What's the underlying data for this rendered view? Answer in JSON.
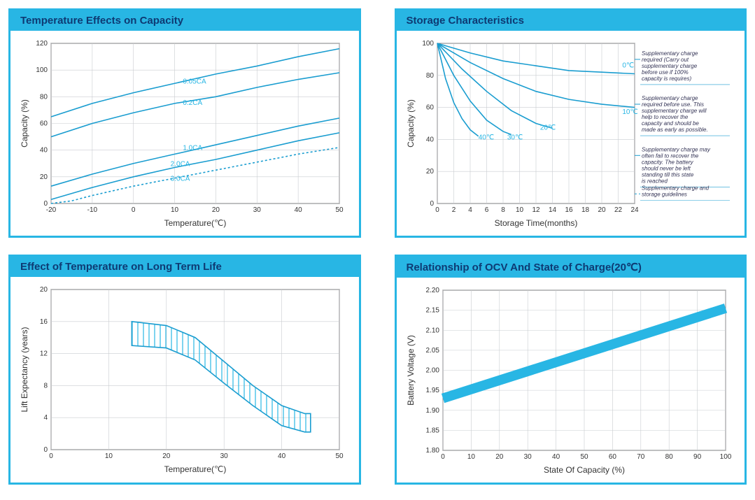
{
  "accent_color": "#28b6e4",
  "line_color": "#1a9dd0",
  "title_color": "#0e3a73",
  "grid_color": "#9aa0a6",
  "grid_light": "#c9ccd0",
  "text_color": "#333333",
  "chart1": {
    "title": "Temperature Effects on Capacity",
    "type": "line",
    "xlabel": "Temperature(℃)",
    "ylabel": "Capacity  (%)",
    "xlim": [
      -20,
      50
    ],
    "ylim": [
      0,
      120
    ],
    "xtick_step": 10,
    "ytick_step": 20,
    "series": [
      {
        "label": "0.05CA",
        "dash": "",
        "data": [
          [
            -20,
            65
          ],
          [
            -10,
            75
          ],
          [
            0,
            83
          ],
          [
            10,
            90
          ],
          [
            20,
            97
          ],
          [
            30,
            103
          ],
          [
            40,
            110
          ],
          [
            50,
            116
          ]
        ]
      },
      {
        "label": "0.2CA",
        "dash": "",
        "data": [
          [
            -20,
            50
          ],
          [
            -10,
            60
          ],
          [
            0,
            68
          ],
          [
            10,
            75
          ],
          [
            20,
            80
          ],
          [
            30,
            87
          ],
          [
            40,
            93
          ],
          [
            50,
            98
          ]
        ]
      },
      {
        "label": "1.0CA",
        "dash": "",
        "data": [
          [
            -20,
            13
          ],
          [
            -10,
            22
          ],
          [
            0,
            30
          ],
          [
            10,
            37
          ],
          [
            20,
            44
          ],
          [
            30,
            51
          ],
          [
            40,
            58
          ],
          [
            50,
            64
          ]
        ]
      },
      {
        "label": "2.0CA",
        "dash": "",
        "data": [
          [
            -20,
            3
          ],
          [
            -10,
            12
          ],
          [
            0,
            20
          ],
          [
            10,
            27
          ],
          [
            20,
            33
          ],
          [
            30,
            40
          ],
          [
            40,
            47
          ],
          [
            50,
            53
          ]
        ]
      },
      {
        "label": "3.0CA",
        "dash": "3,3",
        "data": [
          [
            -20,
            0
          ],
          [
            -15,
            2
          ],
          [
            -10,
            6
          ],
          [
            0,
            13
          ],
          [
            10,
            19
          ],
          [
            20,
            25
          ],
          [
            30,
            31
          ],
          [
            40,
            37
          ],
          [
            50,
            42
          ]
        ]
      }
    ],
    "label_positions": {
      "0.05CA": [
        12,
        90
      ],
      "0.2CA": [
        12,
        74
      ],
      "1.0CA": [
        12,
        40
      ],
      "2.0CA": [
        9,
        28
      ],
      "3.0CA": [
        9,
        17
      ]
    }
  },
  "chart2": {
    "title": "Storage Characteristics",
    "type": "line",
    "xlabel": "Storage  Time(months)",
    "ylabel": "Capacity  (%)",
    "xlim": [
      0,
      24
    ],
    "ylim": [
      0,
      100
    ],
    "xtick_step": 2,
    "ytick_step": 20,
    "series": [
      {
        "label": "0℃",
        "data": [
          [
            0,
            100
          ],
          [
            4,
            94
          ],
          [
            8,
            89
          ],
          [
            12,
            86
          ],
          [
            16,
            83
          ],
          [
            20,
            82
          ],
          [
            24,
            81
          ]
        ]
      },
      {
        "label": "10℃",
        "data": [
          [
            0,
            100
          ],
          [
            4,
            88
          ],
          [
            8,
            78
          ],
          [
            12,
            70
          ],
          [
            16,
            65
          ],
          [
            20,
            62
          ],
          [
            24,
            60
          ]
        ]
      },
      {
        "label": "20℃",
        "data": [
          [
            0,
            100
          ],
          [
            3,
            84
          ],
          [
            6,
            70
          ],
          [
            9,
            58
          ],
          [
            12,
            50
          ],
          [
            14,
            47
          ]
        ]
      },
      {
        "label": "30℃",
        "data": [
          [
            0,
            100
          ],
          [
            2,
            80
          ],
          [
            4,
            64
          ],
          [
            6,
            52
          ],
          [
            8,
            45
          ],
          [
            9,
            43
          ]
        ]
      },
      {
        "label": "40℃",
        "data": [
          [
            0,
            100
          ],
          [
            1,
            78
          ],
          [
            2,
            63
          ],
          [
            3,
            53
          ],
          [
            4,
            46
          ],
          [
            5,
            42
          ]
        ]
      }
    ],
    "label_positions": {
      "0℃": [
        22.5,
        85
      ],
      "10℃": [
        22.5,
        56
      ],
      "20℃": [
        12.5,
        46
      ],
      "30℃": [
        8.5,
        40
      ],
      "40℃": [
        5,
        40
      ]
    },
    "notes": [
      {
        "y": 90,
        "text": "Supplementary charge required (Carry out supplementary charge before use if 100% capacity is requires)"
      },
      {
        "y": 62,
        "text": "Supplementary charge required before use. This supplementary charge will help to recover the capacity and should be made as early as possible."
      },
      {
        "y": 30,
        "text": "Supplementary charge may often fail to recover the capacity. The battery should never be left standing till this state is reached"
      },
      {
        "y": 6,
        "text": "Supplementary charge and storage guidelines"
      }
    ]
  },
  "chart3": {
    "title": "Effect of Temperature on Long Term Life",
    "type": "band",
    "xlabel": "Temperature(℃)",
    "ylabel": "Lift  Expectancy  (years)",
    "xlim": [
      0,
      50
    ],
    "ylim": [
      0,
      20
    ],
    "xtick_step": 10,
    "ytick_step": 4,
    "band": {
      "upper": [
        [
          14,
          16
        ],
        [
          20,
          15.5
        ],
        [
          25,
          14
        ],
        [
          30,
          11
        ],
        [
          35,
          8
        ],
        [
          40,
          5.5
        ],
        [
          44,
          4.5
        ],
        [
          45,
          4.5
        ]
      ],
      "lower": [
        [
          14,
          13
        ],
        [
          20,
          12.7
        ],
        [
          25,
          11.2
        ],
        [
          30,
          8.3
        ],
        [
          35,
          5.5
        ],
        [
          40,
          3
        ],
        [
          44,
          2.2
        ],
        [
          45,
          2.2
        ]
      ]
    },
    "hatch_color": "#28b6e4"
  },
  "chart4": {
    "title": "Relationship of OCV And State of Charge(20℃)",
    "type": "thick-line",
    "xlabel": "State Of Capacity (%)",
    "ylabel": "Battery Voltage (V)",
    "xlim": [
      0,
      100
    ],
    "ylim": [
      1.8,
      2.2
    ],
    "xtick_step": 10,
    "ytick_step": 0.05,
    "line": {
      "from": [
        0,
        1.93
      ],
      "to": [
        100,
        2.155
      ],
      "width": 14,
      "color": "#28b6e4"
    }
  }
}
